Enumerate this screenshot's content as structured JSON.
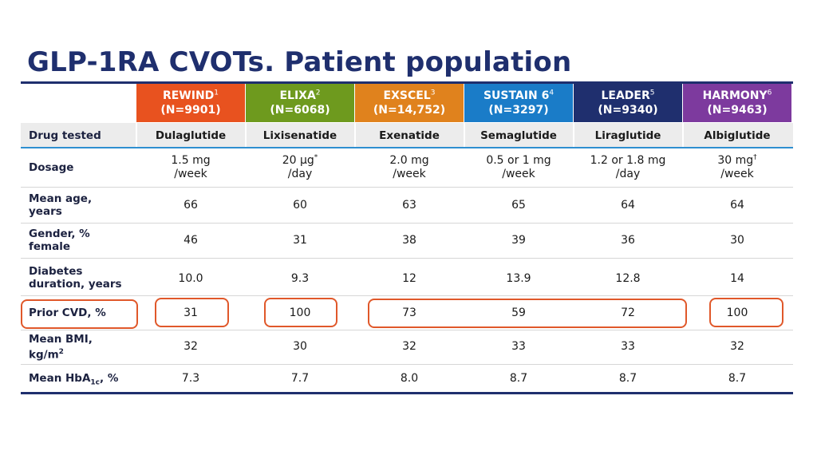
{
  "title": "GLP-1RA CVOTs. Patient population",
  "colors": {
    "title": "#1f2f6e",
    "rewind": "#e8521f",
    "elixa": "#6e9a1e",
    "exscel": "#e0821d",
    "sustain": "#1a7cc8",
    "leader": "#1f2f6e",
    "harmony": "#7d3a9e",
    "highlight": "#e0582a"
  },
  "trials": [
    {
      "name": "REWIND",
      "ref": "1",
      "n": "(N=9901)"
    },
    {
      "name": "ELIXA",
      "ref": "2",
      "n": "(N=6068)"
    },
    {
      "name": "EXSCEL",
      "ref": "3",
      "n": "(N=14,752)"
    },
    {
      "name": "SUSTAIN 6",
      "ref": "4",
      "n": "(N=3297)"
    },
    {
      "name": "LEADER",
      "ref": "5",
      "n": "(N=9340)"
    },
    {
      "name": "HARMONY",
      "ref": "6",
      "n": "(N=9463)"
    }
  ],
  "rows": {
    "drug": {
      "label": "Drug tested",
      "values": [
        "Dulaglutide",
        "Lixisenatide",
        "Exenatide",
        "Semaglutide",
        "Liraglutide",
        "Albiglutide"
      ]
    },
    "dosage": {
      "label": "Dosage",
      "values": [
        {
          "dose": "1.5 mg",
          "mark": "",
          "freq": "/week"
        },
        {
          "dose": "20 µg",
          "mark": "*",
          "freq": "/day"
        },
        {
          "dose": "2.0 mg",
          "mark": "",
          "freq": "/week"
        },
        {
          "dose": "0.5 or 1 mg",
          "mark": "",
          "freq": "/week"
        },
        {
          "dose": "1.2 or 1.8 mg",
          "mark": "",
          "freq": "/day"
        },
        {
          "dose": "30 mg",
          "mark": "†",
          "freq": "/week"
        }
      ]
    },
    "age": {
      "label1": "Mean age,",
      "label2": "years",
      "values": [
        "66",
        "60",
        "63",
        "65",
        "64",
        "64"
      ]
    },
    "gender": {
      "label1": "Gender, %",
      "label2": "female",
      "values": [
        "46",
        "31",
        "38",
        "39",
        "36",
        "30"
      ]
    },
    "diabetes": {
      "label1": "Diabetes",
      "label2": "duration, years",
      "values": [
        "10.0",
        "9.3",
        "12",
        "13.9",
        "12.8",
        "14"
      ]
    },
    "cvd": {
      "label": "Prior CVD, %",
      "values": [
        "31",
        "100",
        "73",
        "59",
        "72",
        "100"
      ]
    },
    "bmi": {
      "label1": "Mean BMI,",
      "label2": "kg/m",
      "label2_sup": "2",
      "values": [
        "32",
        "30",
        "32",
        "33",
        "33",
        "32"
      ]
    },
    "hba1c": {
      "label_pre": "Mean HbA",
      "label_sub": "1c",
      "label_post": ", %",
      "values": [
        "7.3",
        "7.7",
        "8.0",
        "8.7",
        "8.7",
        "8.7"
      ]
    }
  }
}
